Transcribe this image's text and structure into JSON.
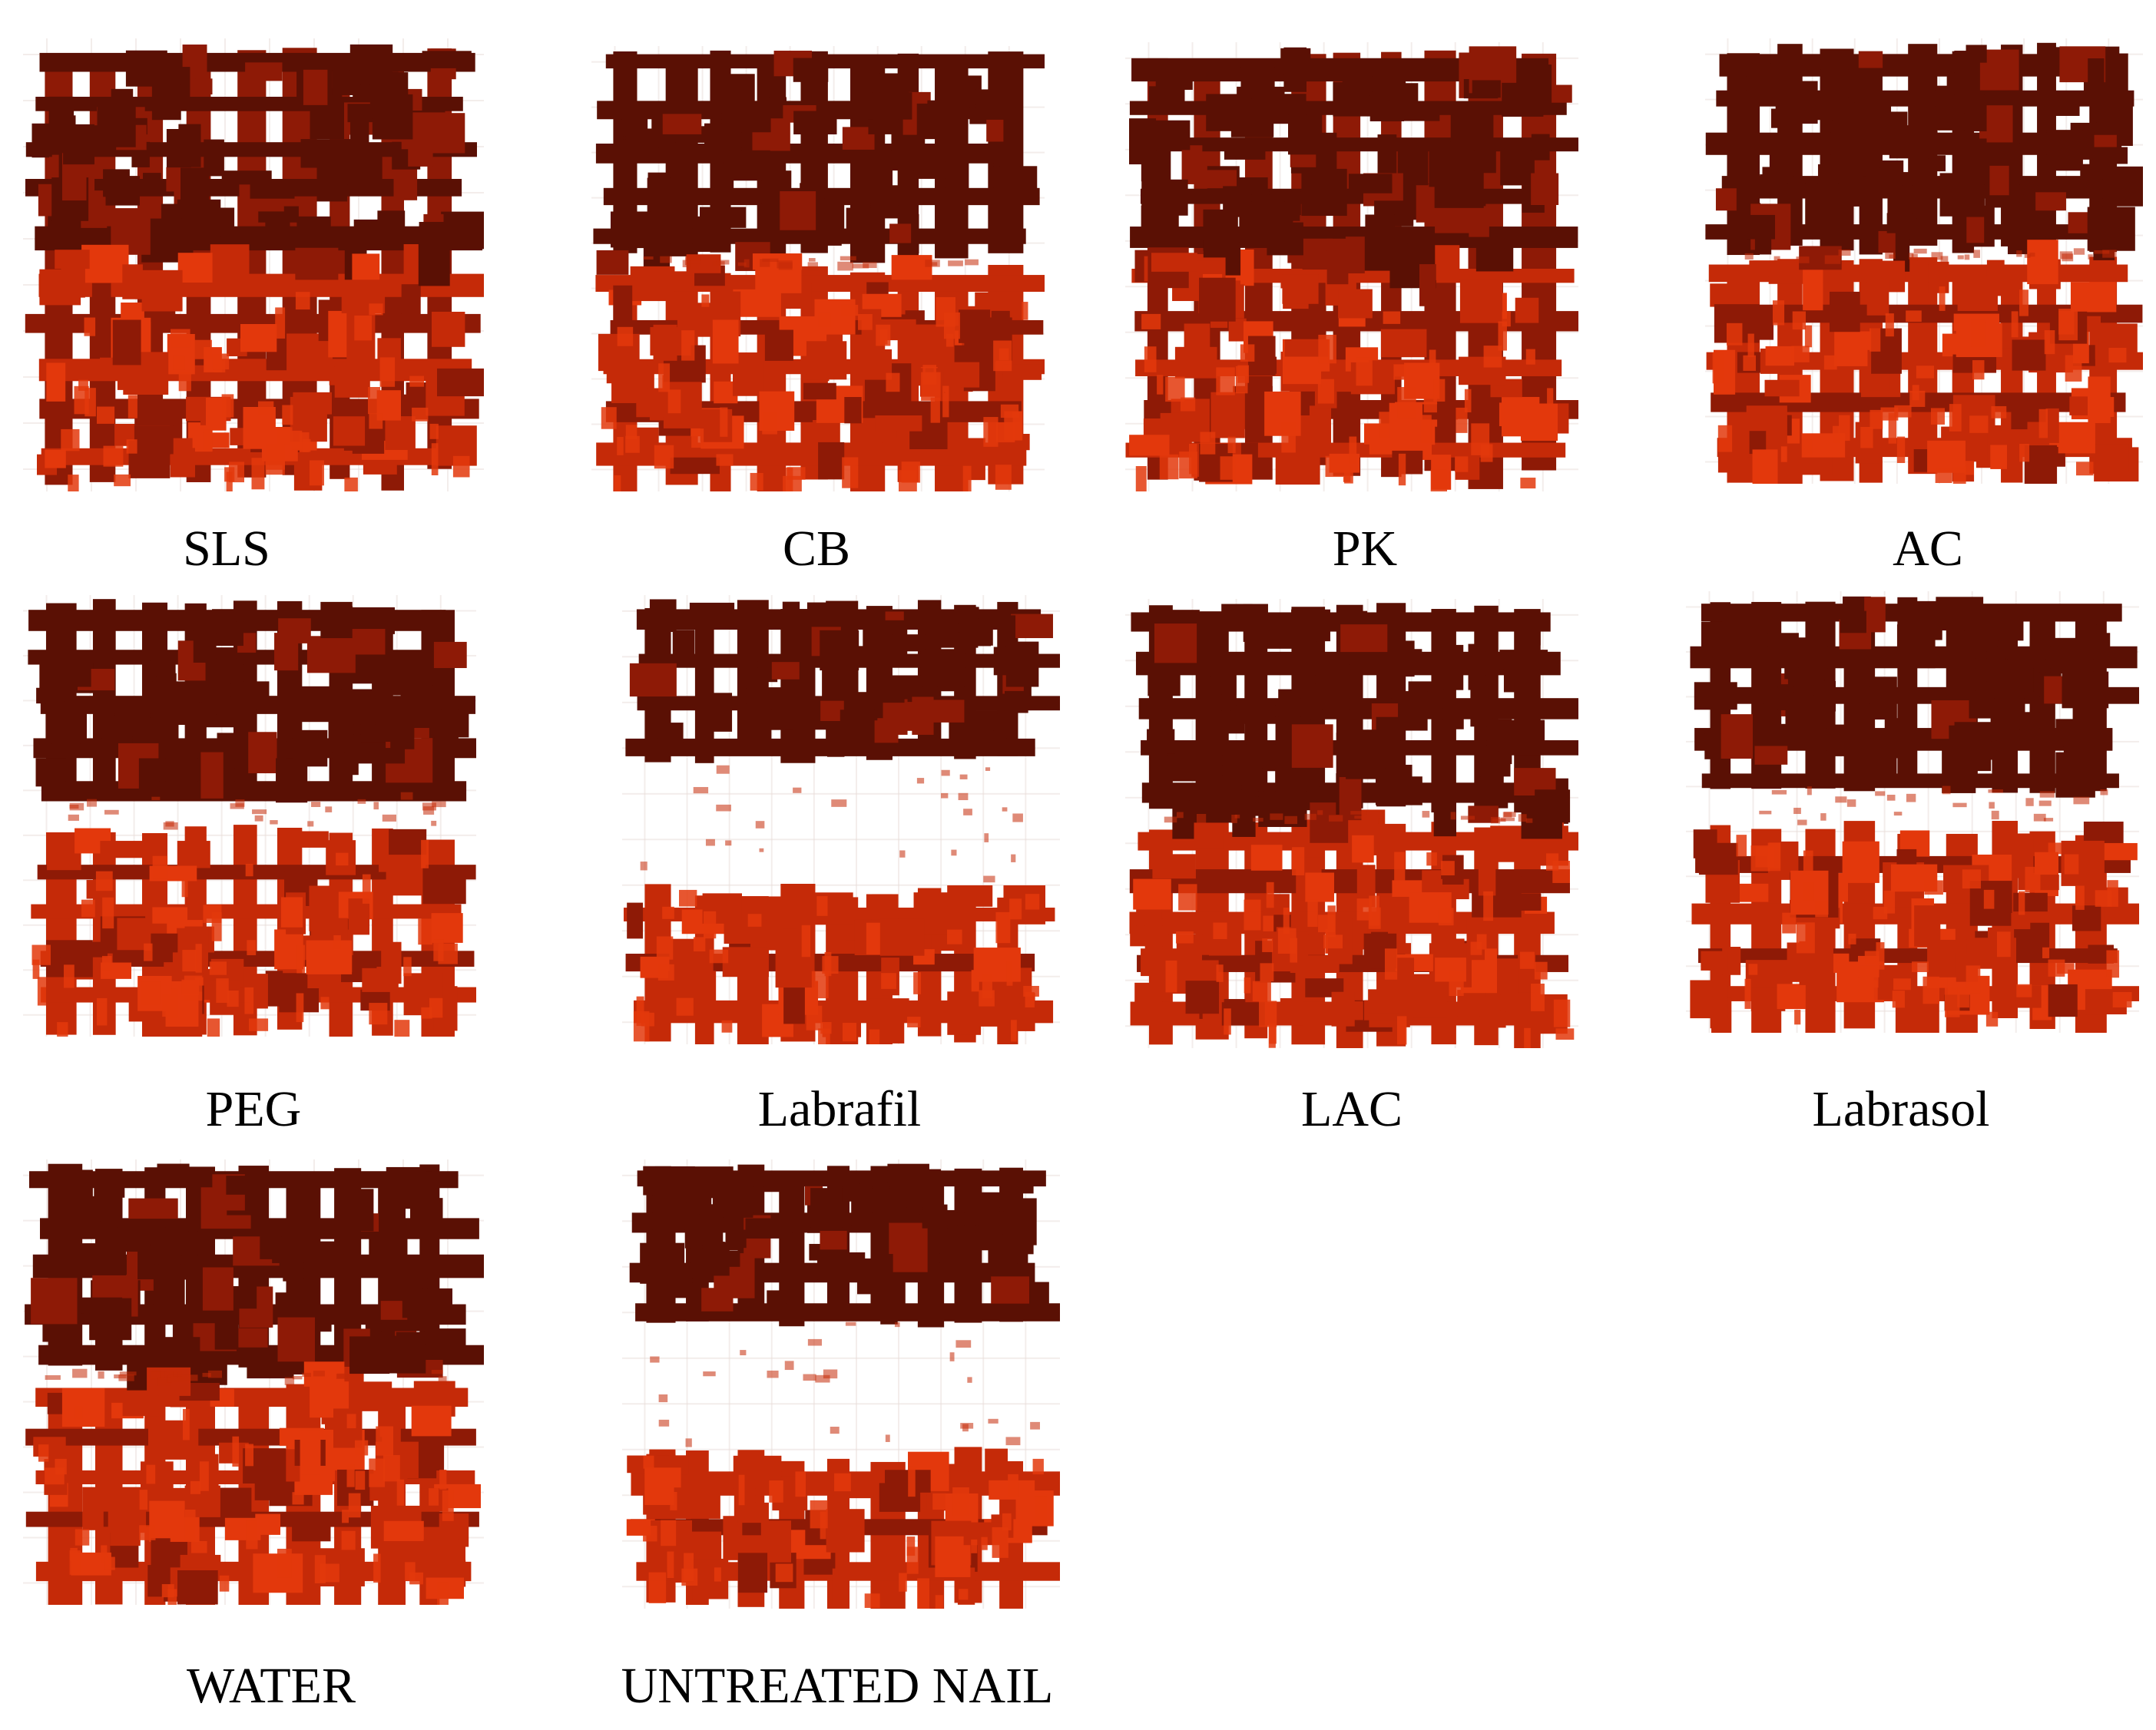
{
  "colors": {
    "dark": "#5a1004",
    "mid": "#8e1a06",
    "light": "#c52a08",
    "bright": "#e3380c"
  },
  "panels": [
    {
      "label": "SLS",
      "gap": "none"
    },
    {
      "label": "CB",
      "gap": "thin"
    },
    {
      "label": "PK",
      "gap": "none"
    },
    {
      "label": "AC",
      "gap": "thin"
    },
    {
      "label": "PEG",
      "gap": "medium"
    },
    {
      "label": "Labrafil",
      "gap": "large"
    },
    {
      "label": "LAC",
      "gap": "thin"
    },
    {
      "label": "Labrasol",
      "gap": "medium"
    },
    {
      "label": "WATER",
      "gap": "thin"
    },
    {
      "label": "UNTREATED NAIL",
      "gap": "large"
    }
  ]
}
